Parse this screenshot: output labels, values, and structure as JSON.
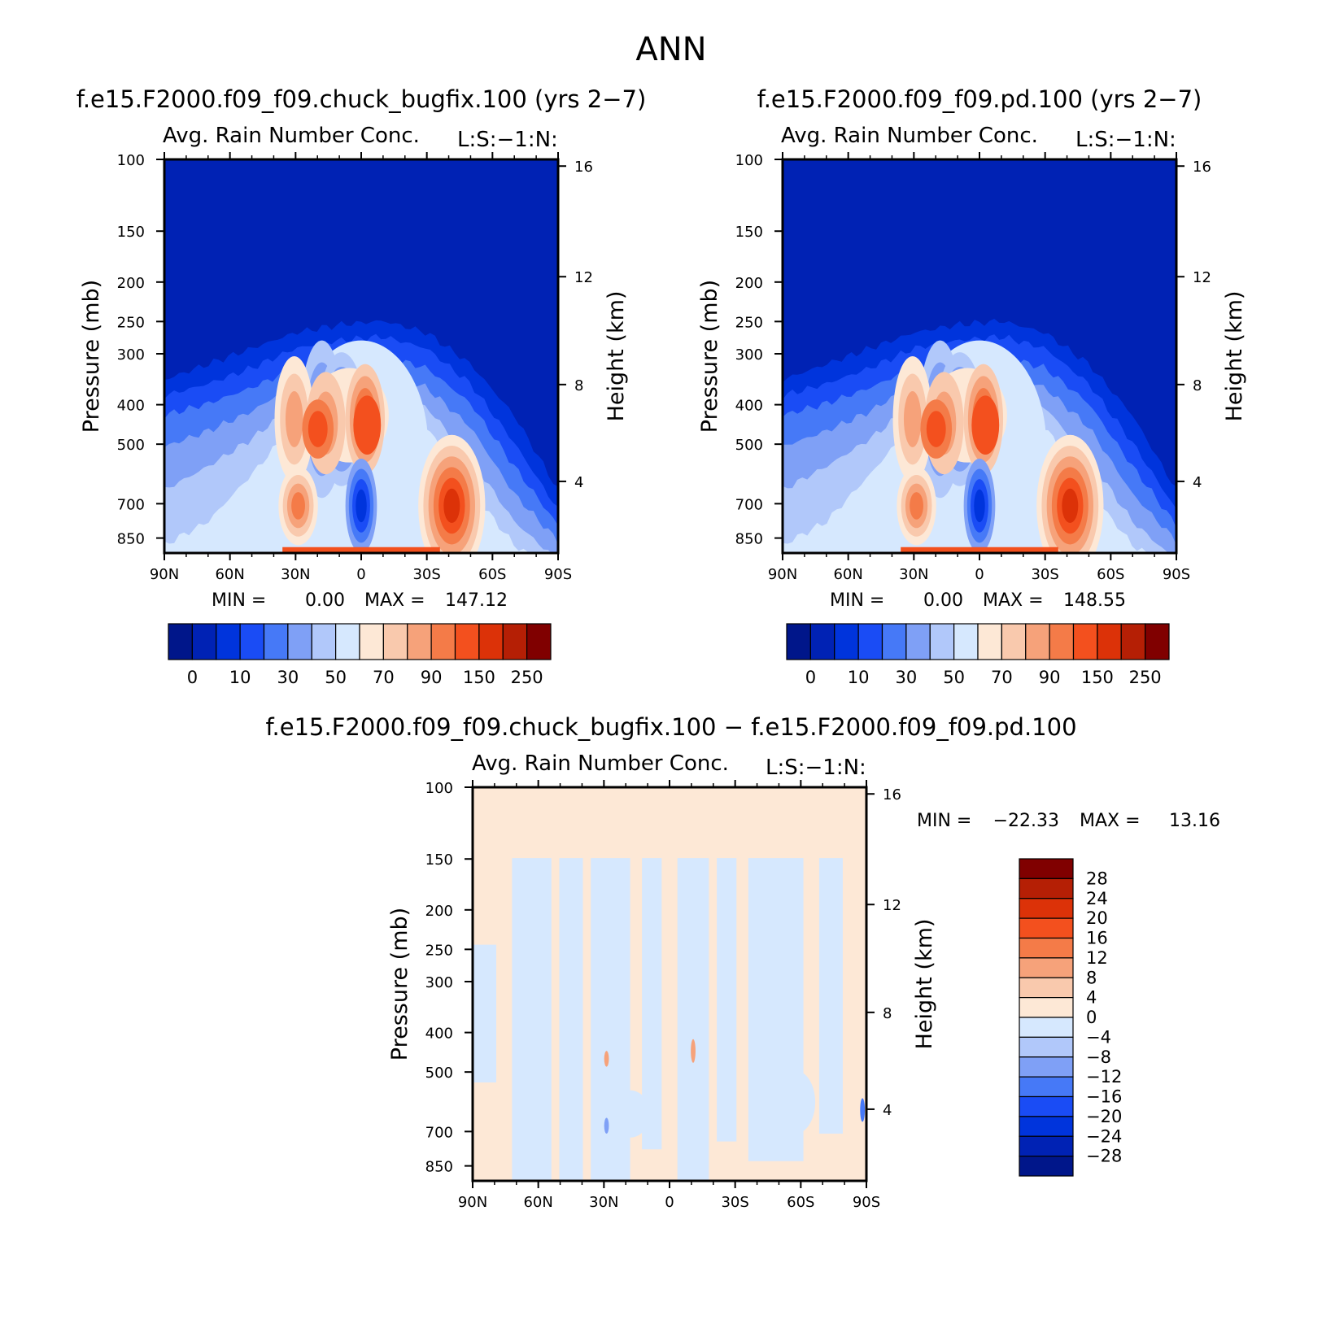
{
  "figure_title": "ANN",
  "colors": {
    "abs_levels": [
      "#00168a",
      "#0022b4",
      "#0034dc",
      "#1a4cf5",
      "#4679f7",
      "#7fa0f6",
      "#b1c8fa",
      "#d6e8fe",
      "#fde8d6",
      "#f9c9ad",
      "#f6a27a",
      "#f47b48",
      "#f3501e",
      "#dc3208",
      "#b51f05",
      "#800000"
    ],
    "diff_levels": [
      "#00168a",
      "#0022b4",
      "#0034dc",
      "#1a4cf5",
      "#4679f7",
      "#7fa0f6",
      "#b1c8fa",
      "#d6e8fe",
      "#fde8d6",
      "#f9c9ad",
      "#f6a27a",
      "#f47b48",
      "#f3501e",
      "#dc3208",
      "#b51f05",
      "#800000"
    ]
  },
  "chart_data": [
    {
      "type": "heatmap",
      "title": "f.e15.F2000.f09_f09.chuck_bugfix.100 (yrs 2−7)",
      "subtitle": "Avg. Rain Number Conc.",
      "corner_label": "L:S:−1:N:",
      "xlabel": "",
      "ylabel": "Pressure (mb)",
      "ylabel_right": "Height (km)",
      "x_ticks": [
        "90N",
        "60N",
        "30N",
        "0",
        "30S",
        "60S",
        "90S"
      ],
      "y_ticks": [
        "100",
        "150",
        "200",
        "250",
        "300",
        "400",
        "500",
        "700",
        "850"
      ],
      "y_ticks_right": [
        "16",
        "12",
        "8",
        "4"
      ],
      "stats": {
        "min_label": "MIN =",
        "min": "0.00",
        "max_label": "MAX =",
        "max": "147.12"
      },
      "colorbar": {
        "orientation": "horizontal",
        "labels": [
          "0",
          "10",
          "30",
          "50",
          "70",
          "90",
          "150",
          "250"
        ]
      },
      "max_value": 147.12
    },
    {
      "type": "heatmap",
      "title": "f.e15.F2000.f09_f09.pd.100 (yrs 2−7)",
      "subtitle": "Avg. Rain Number Conc.",
      "corner_label": "L:S:−1:N:",
      "xlabel": "",
      "ylabel": "Pressure (mb)",
      "ylabel_right": "Height (km)",
      "x_ticks": [
        "90N",
        "60N",
        "30N",
        "0",
        "30S",
        "60S",
        "90S"
      ],
      "y_ticks": [
        "100",
        "150",
        "200",
        "250",
        "300",
        "400",
        "500",
        "700",
        "850"
      ],
      "y_ticks_right": [
        "16",
        "12",
        "8",
        "4"
      ],
      "stats": {
        "min_label": "MIN =",
        "min": "0.00",
        "max_label": "MAX =",
        "max": "148.55"
      },
      "colorbar": {
        "orientation": "horizontal",
        "labels": [
          "0",
          "10",
          "30",
          "50",
          "70",
          "90",
          "150",
          "250"
        ]
      },
      "max_value": 148.55
    },
    {
      "type": "heatmap",
      "title": "f.e15.F2000.f09_f09.chuck_bugfix.100 − f.e15.F2000.f09_f09.pd.100",
      "subtitle": "Avg. Rain Number Conc.",
      "corner_label": "L:S:−1:N:",
      "xlabel": "",
      "ylabel": "Pressure (mb)",
      "ylabel_right": "Height (km)",
      "x_ticks": [
        "90N",
        "60N",
        "30N",
        "0",
        "30S",
        "60S",
        "90S"
      ],
      "y_ticks": [
        "100",
        "150",
        "200",
        "250",
        "300",
        "400",
        "500",
        "700",
        "850"
      ],
      "y_ticks_right": [
        "16",
        "12",
        "8",
        "4"
      ],
      "stats": {
        "min_label": "MIN =",
        "min": "−22.33",
        "max_label": "MAX =",
        "max": "13.16"
      },
      "colorbar": {
        "orientation": "vertical",
        "labels": [
          "28",
          "24",
          "20",
          "16",
          "12",
          "8",
          "4",
          "0",
          "−4",
          "−8",
          "−12",
          "−16",
          "−20",
          "−24",
          "−28"
        ]
      }
    }
  ]
}
